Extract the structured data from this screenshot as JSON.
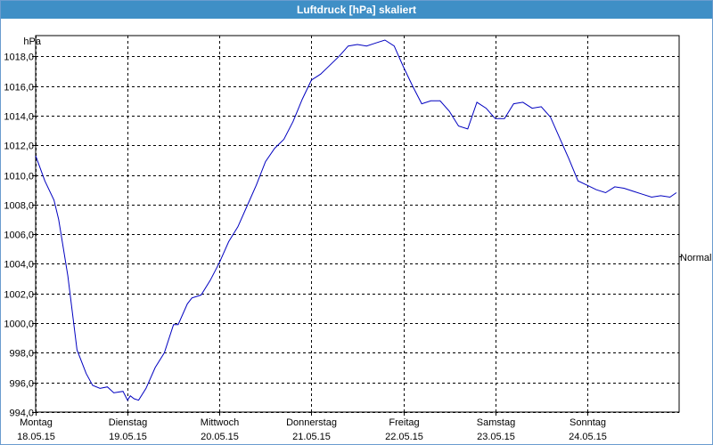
{
  "title": "Luftdruck [hPa] skaliert",
  "colors": {
    "titlebar": "#3f8fc6",
    "series": "#0000c0",
    "grid": "#000000"
  },
  "chart_data": {
    "type": "line",
    "title": "Luftdruck [hPa] skaliert",
    "ylabel": "hPa",
    "ylim": [
      994.0,
      1019.4
    ],
    "yticks": [
      994.0,
      996.0,
      998.0,
      1000.0,
      1002.0,
      1004.0,
      1006.0,
      1008.0,
      1010.0,
      1012.0,
      1014.0,
      1016.0,
      1018.0
    ],
    "ytick_labels": [
      "994,0",
      "996,0",
      "998,0",
      "1000,0",
      "1002,0",
      "1004,0",
      "1006,0",
      "1008,0",
      "1010,0",
      "1012,0",
      "1014,0",
      "1016,0",
      "1018,0"
    ],
    "xlim": [
      0,
      7
    ],
    "xticks": [
      {
        "day": "Montag",
        "date": "18.05.15"
      },
      {
        "day": "Dienstag",
        "date": "19.05.15"
      },
      {
        "day": "Mittwoch",
        "date": "20.05.15"
      },
      {
        "day": "Donnerstag",
        "date": "21.05.15"
      },
      {
        "day": "Freitag",
        "date": "22.05.15"
      },
      {
        "day": "Samstag",
        "date": "23.05.15"
      },
      {
        "day": "Sonntag",
        "date": "24.05.15"
      }
    ],
    "reference_line": {
      "label": "Normal",
      "value": 1004.5
    },
    "grid": true,
    "series": [
      {
        "x": [
          0.0,
          0.1,
          0.2,
          0.25,
          0.35,
          0.45,
          0.55,
          0.62,
          0.7,
          0.78,
          0.85,
          0.95,
          1.0,
          1.03,
          1.07,
          1.12,
          1.2,
          1.3,
          1.4,
          1.5,
          1.55,
          1.65,
          1.7,
          1.8,
          1.9,
          2.0,
          2.1,
          2.2,
          2.3,
          2.4,
          2.5,
          2.6,
          2.7,
          2.8,
          2.9,
          3.0,
          3.1,
          3.2,
          3.3,
          3.4,
          3.5,
          3.6,
          3.7,
          3.8,
          3.9,
          3.95,
          4.0,
          4.1,
          4.2,
          4.3,
          4.4,
          4.5,
          4.6,
          4.7,
          4.8,
          4.9,
          5.0,
          5.1,
          5.2,
          5.3,
          5.4,
          5.5,
          5.6,
          5.7,
          5.8,
          5.9,
          6.0,
          6.1,
          6.2,
          6.3,
          6.4,
          6.5,
          6.6,
          6.7,
          6.8,
          6.9,
          6.97
        ],
        "y": [
          1011.3,
          1009.6,
          1008.3,
          1007.0,
          1003.2,
          998.2,
          996.6,
          995.8,
          995.6,
          995.7,
          995.3,
          995.4,
          994.8,
          995.1,
          994.9,
          994.8,
          995.6,
          997.0,
          998.0,
          999.9,
          999.9,
          1001.3,
          1001.7,
          1001.9,
          1002.9,
          1004.1,
          1005.5,
          1006.5,
          1007.9,
          1009.3,
          1010.9,
          1011.8,
          1012.4,
          1013.6,
          1015.1,
          1016.4,
          1016.8,
          1017.4,
          1018.0,
          1018.7,
          1018.8,
          1018.7,
          1018.9,
          1019.1,
          1018.7,
          1018.0,
          1017.3,
          1016.0,
          1014.8,
          1015.0,
          1015.0,
          1014.3,
          1013.3,
          1013.1,
          1014.9,
          1014.5,
          1013.8,
          1013.8,
          1014.8,
          1014.9,
          1014.5,
          1014.6,
          1013.9,
          1012.5,
          1011.1,
          1009.6,
          1009.3,
          1009.0,
          1008.8,
          1009.2,
          1009.1,
          1008.9,
          1008.7,
          1008.5,
          1008.6,
          1008.5,
          1008.8
        ]
      }
    ]
  }
}
